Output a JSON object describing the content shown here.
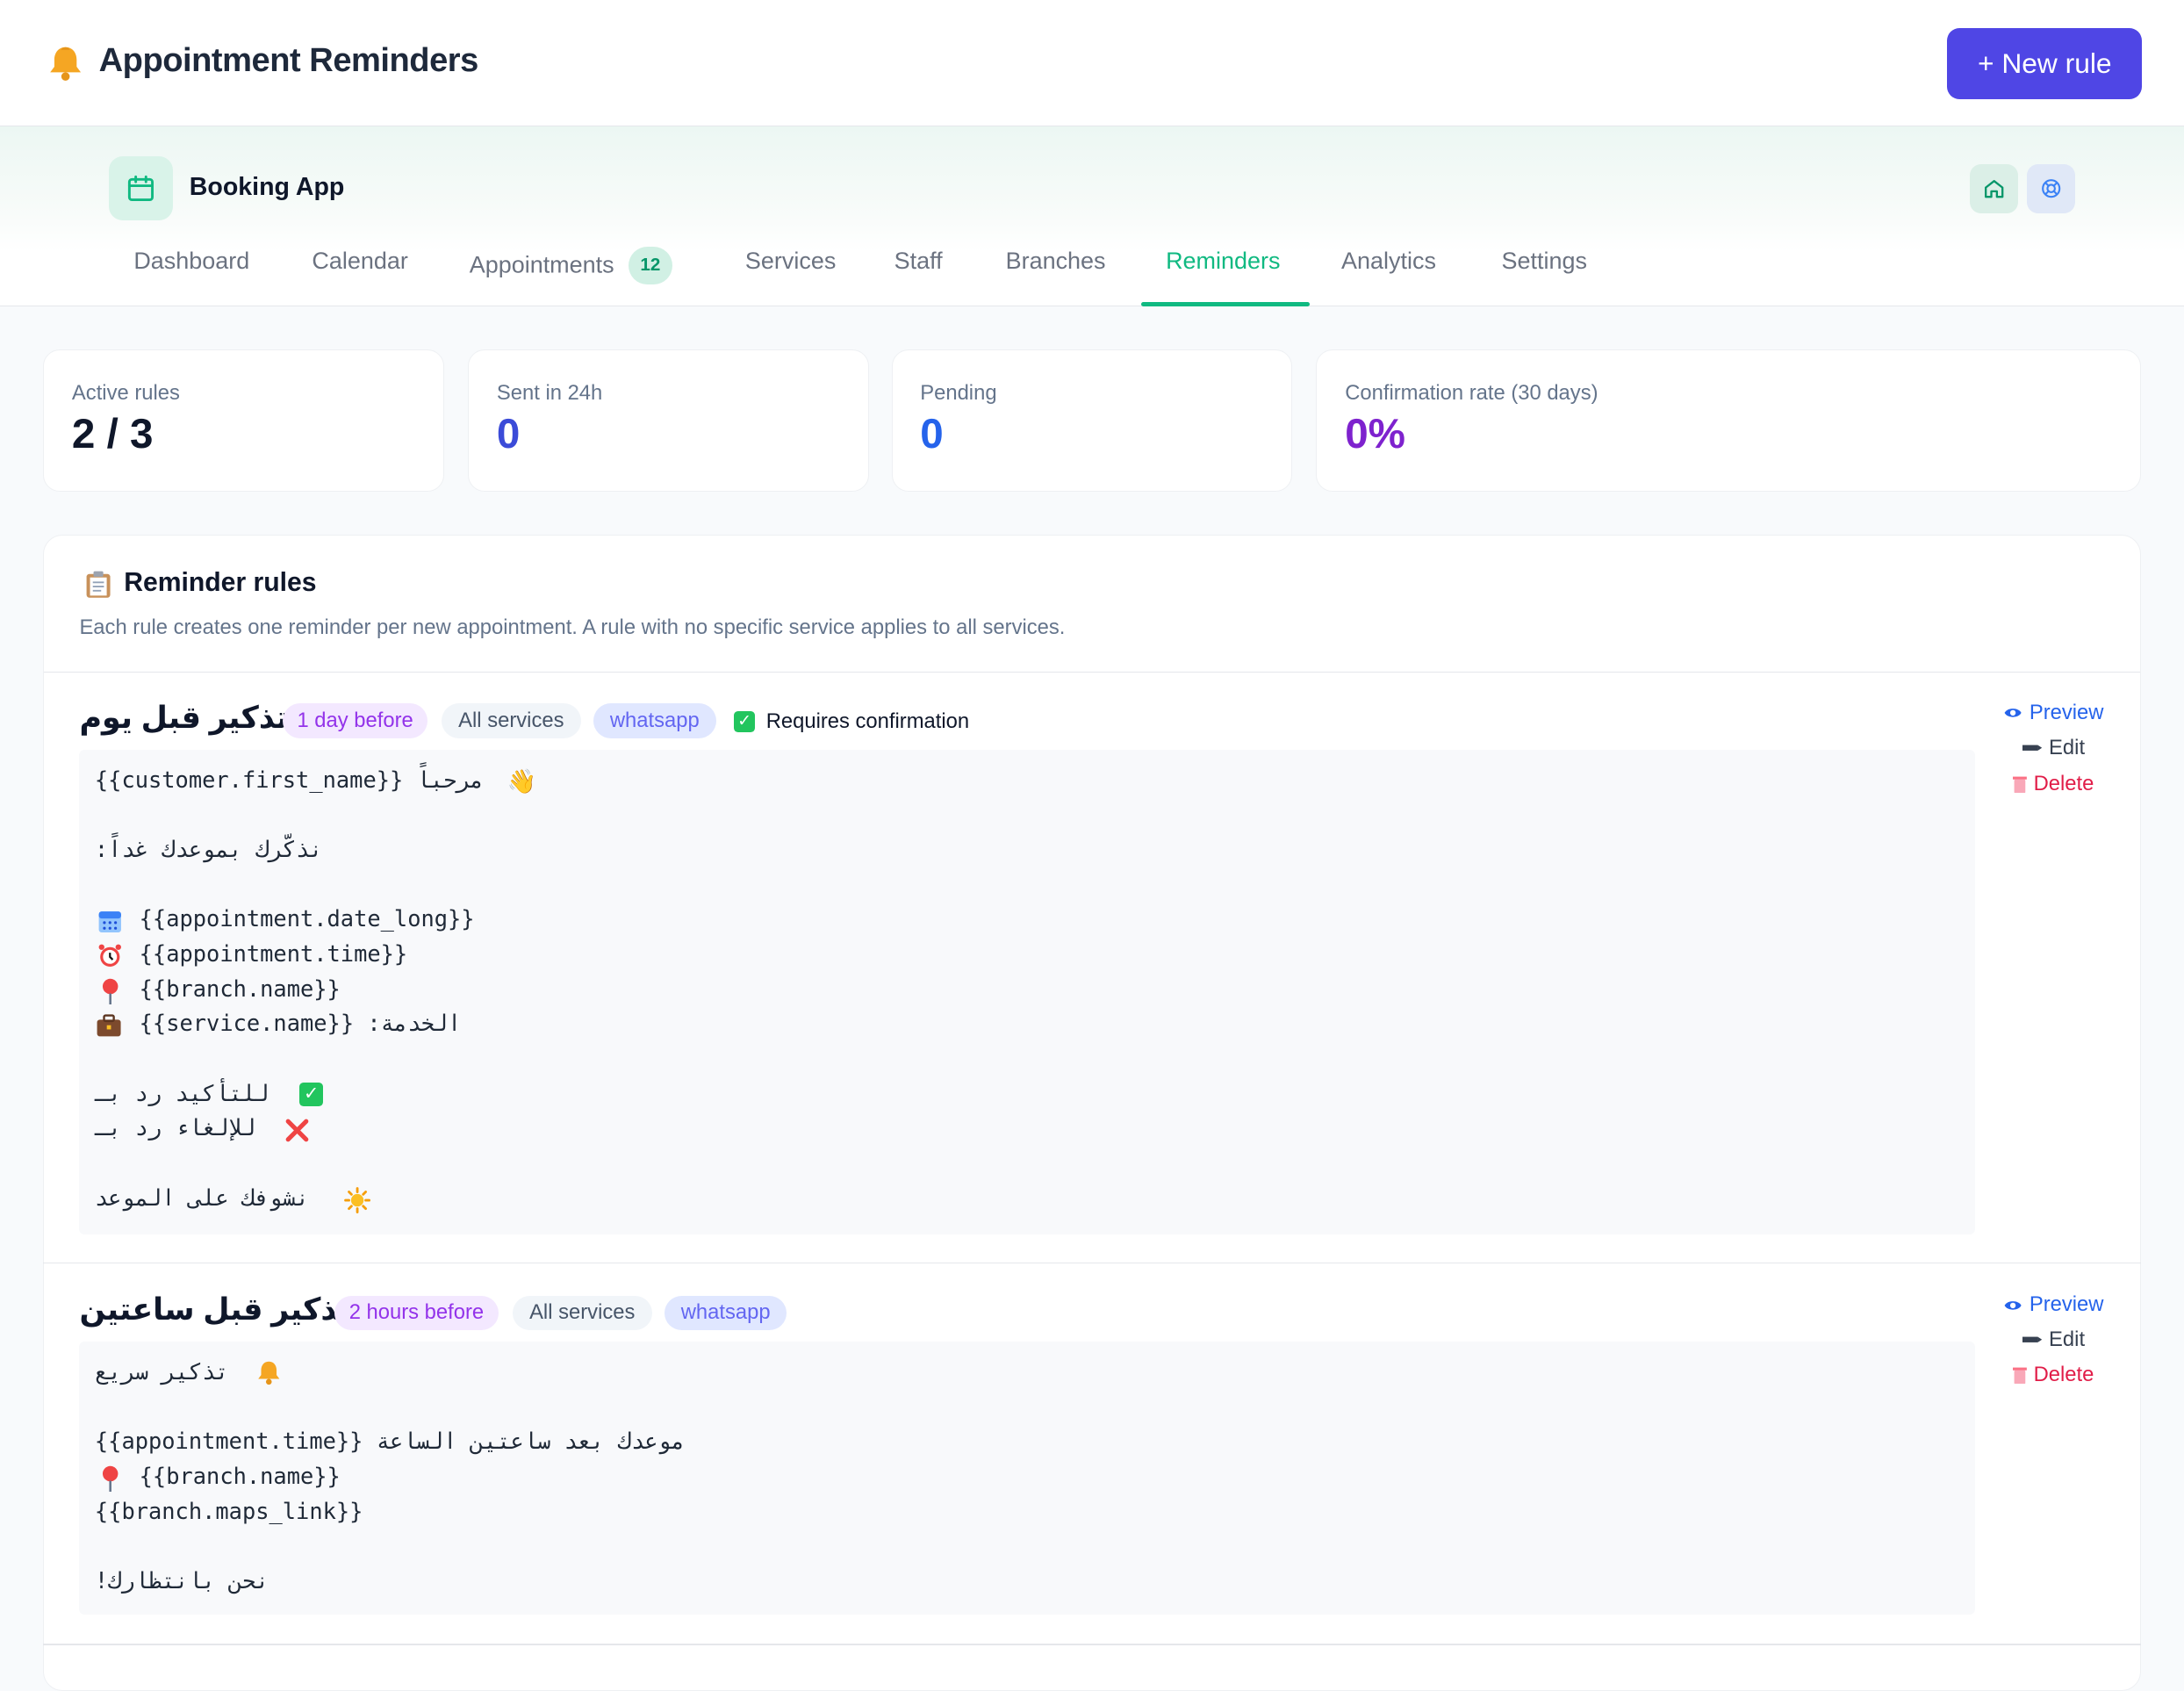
{
  "header": {
    "title": "Appointment Reminders",
    "new_rule_label": "+ New rule"
  },
  "app": {
    "name": "Booking App",
    "tabs": [
      {
        "label": "Dashboard"
      },
      {
        "label": "Calendar"
      },
      {
        "label": "Appointments",
        "badge": "12"
      },
      {
        "label": "Services"
      },
      {
        "label": "Staff"
      },
      {
        "label": "Branches"
      },
      {
        "label": "Reminders",
        "active": true
      },
      {
        "label": "Analytics"
      },
      {
        "label": "Settings"
      }
    ]
  },
  "stats": [
    {
      "label": "Active rules",
      "value": "2 / 3",
      "color": "#0f172a"
    },
    {
      "label": "Sent in 24h",
      "value": "0",
      "color": "#3b4bd8"
    },
    {
      "label": "Pending",
      "value": "0",
      "color": "#2563eb"
    },
    {
      "label": "Confirmation rate (30 days)",
      "value": "0%",
      "color": "#7e22ce"
    }
  ],
  "rules_panel": {
    "title": "Reminder rules",
    "description": "Each rule creates one reminder per new appointment. A rule with no specific service applies to all services."
  },
  "rules": [
    {
      "name": "تذكير قبل يوم",
      "timing": "1 day before",
      "services": "All services",
      "channel": "whatsapp",
      "requires_confirmation_label": "Requires confirmation",
      "message_lines": [
        "مرحباً {{customer.first_name}}",
        "نذكّرك بموعدك غداً:",
        "{{appointment.date_long}}",
        "{{appointment.time}}",
        "{{branch.name}}",
        "الخدمة: {{service.name}}",
        "للتأكيد رد بـ",
        "للإلغاء رد بـ",
        "نشوفك على الموعد"
      ],
      "actions": {
        "preview": "Preview",
        "edit": "Edit",
        "delete": "Delete"
      }
    },
    {
      "name": "تذكير قبل ساعتين",
      "timing": "2 hours before",
      "services": "All services",
      "channel": "whatsapp",
      "message_lines": [
        "تذكير سريع",
        "موعدك بعد ساعتين الساعة {{appointment.time}}",
        "{{branch.name}}",
        "{{branch.maps_link}}",
        "نحن بانتظارك!"
      ],
      "actions": {
        "preview": "Preview",
        "edit": "Edit",
        "delete": "Delete"
      }
    }
  ]
}
